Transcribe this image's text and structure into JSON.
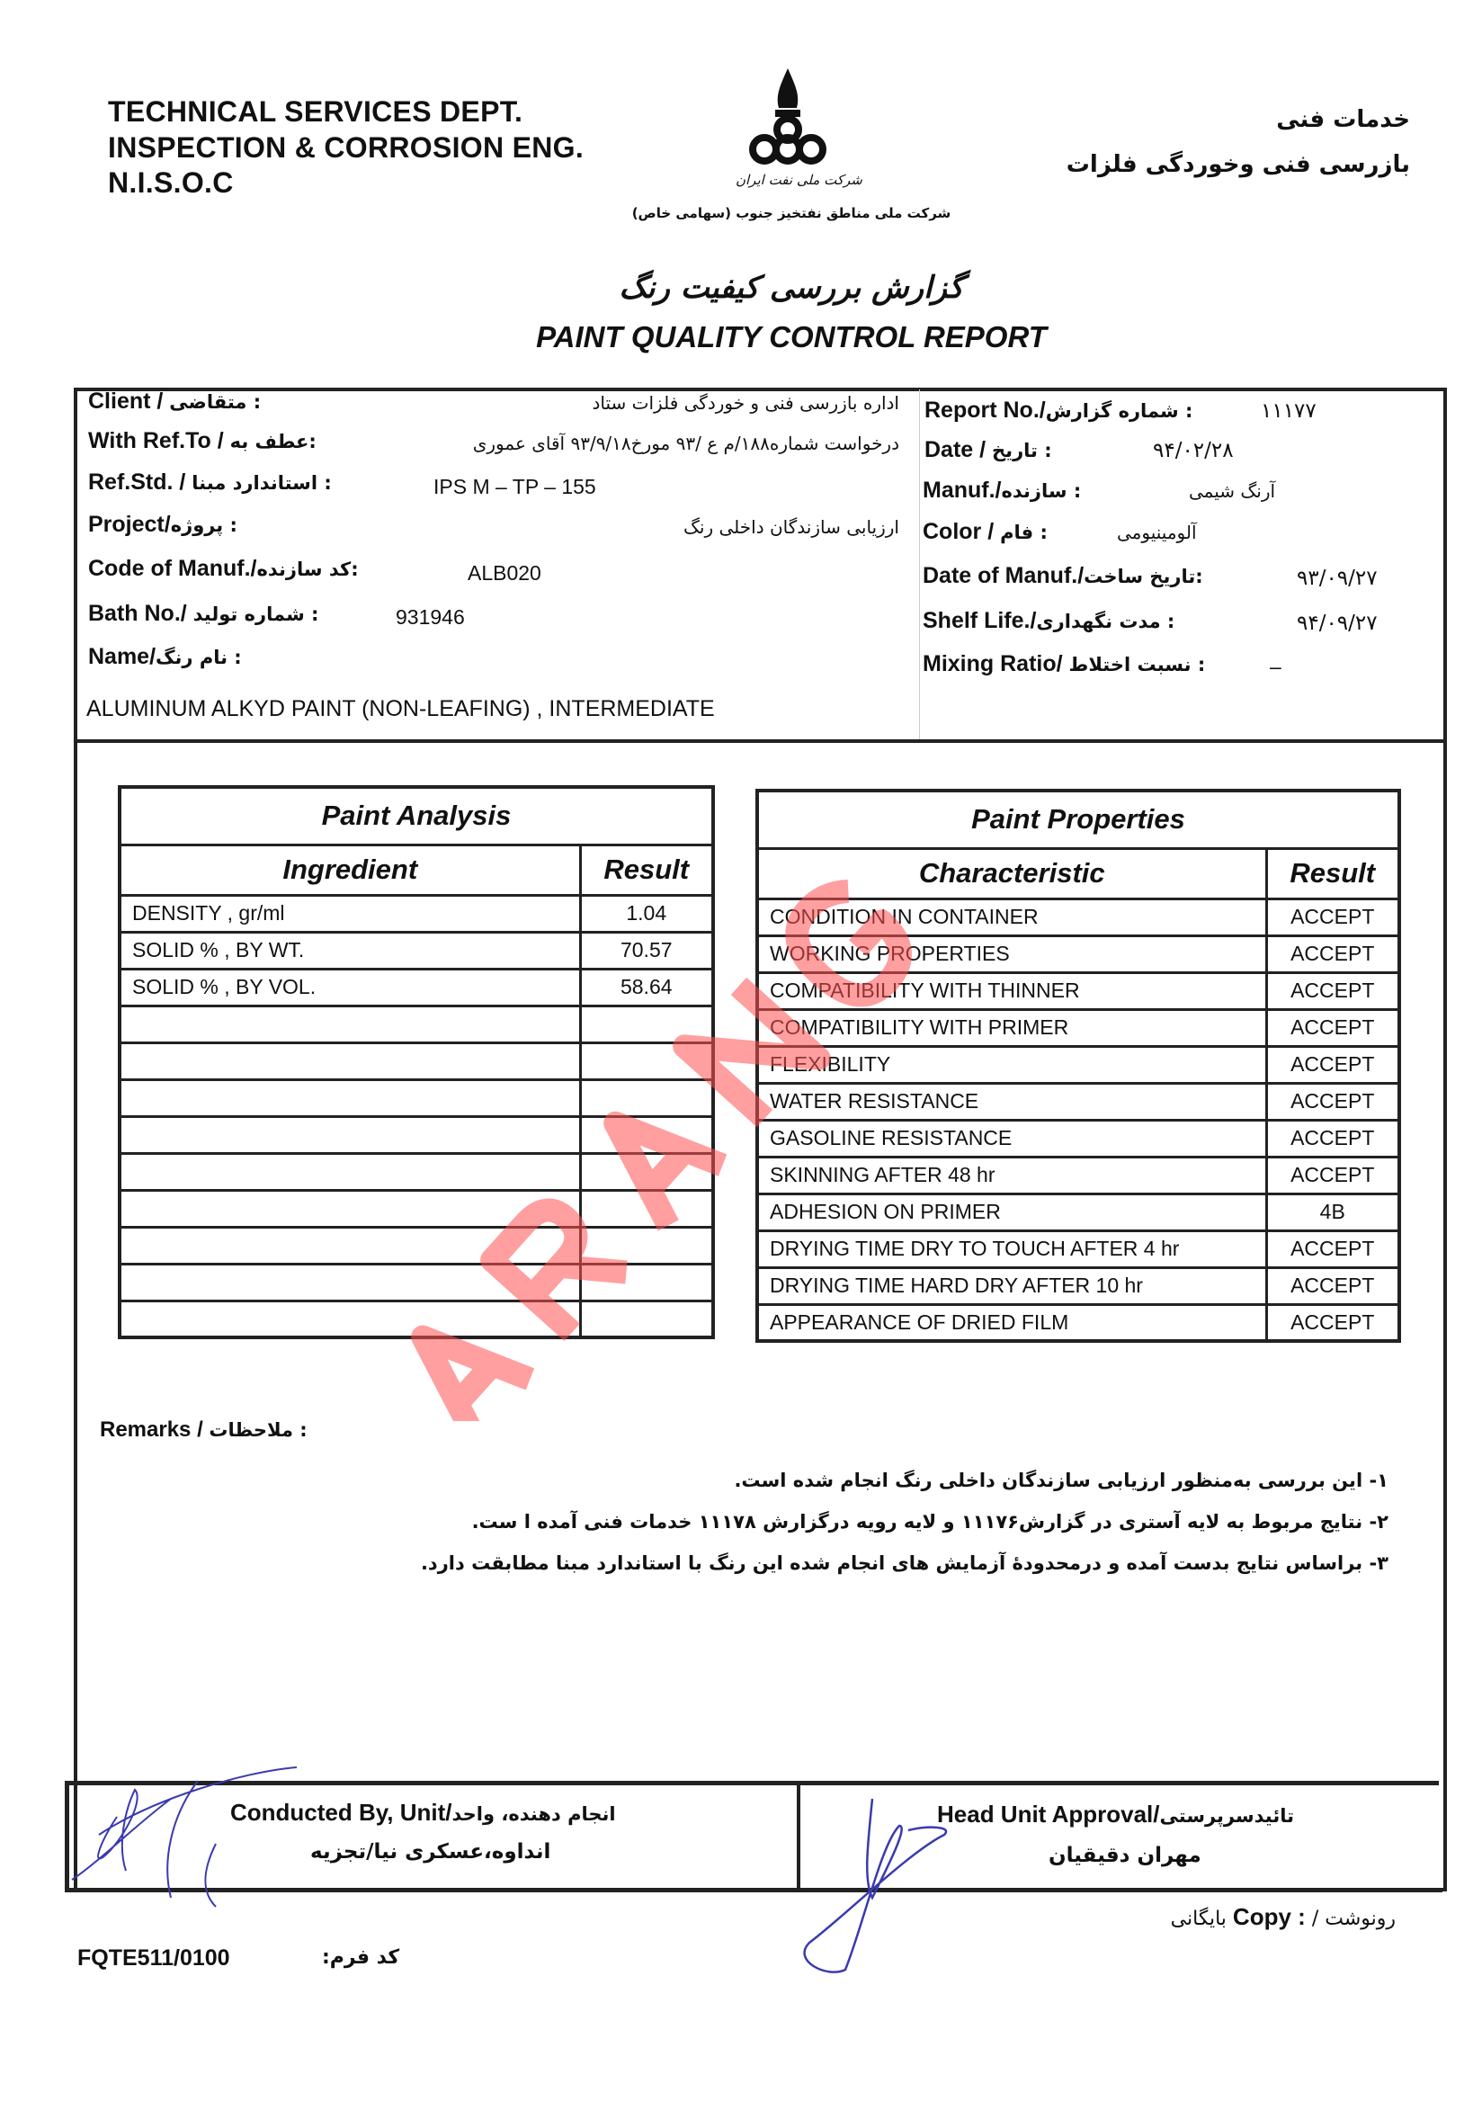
{
  "header": {
    "dept_en": [
      "TECHNICAL SERVICES DEPT.",
      "INSPECTION & CORROSION ENG.",
      "N.I.S.O.C"
    ],
    "dept_fa": [
      "خدمات فنی",
      "بازرسی فنی وخوردگی فلزات"
    ],
    "logo_caption": "شرکت ملی نفت ایران",
    "company_fa": "شرکت ملی مناطق نفتخیز جنوب (سهامی خاص)",
    "title_fa": "گزارش بررسی کیفیت رنگ",
    "title_en": "PAINT QUALITY CONTROL REPORT"
  },
  "info_left": [
    {
      "label": "Client /",
      "label_fa": "متقاضی :",
      "value": "اداره بازرسی فنی و خوردگی فلزات ستاد"
    },
    {
      "label": "With Ref.To /",
      "label_fa": "عطف به:",
      "value": "درخواست شماره۱۸۸/م ع /۹۳ مورخ۹۳/۹/۱۸ آقای عموری"
    },
    {
      "label": "Ref.Std. /",
      "label_fa": "استاندارد مبنا :",
      "value": "IPS M – TP – 155"
    },
    {
      "label": "Project/",
      "label_fa": "پروژه :",
      "value": "ارزیابی سازندگان داخلی رنگ"
    },
    {
      "label": "Code of Manuf./",
      "label_fa": "کد سازنده:",
      "value": "ALB020"
    },
    {
      "label": "Bath No./",
      "label_fa": "شماره تولید :",
      "value": "931946"
    },
    {
      "label": "Name/",
      "label_fa": "نام رنگ :",
      "value": ""
    }
  ],
  "paint_name": "ALUMINUM  ALKYD  PAINT (NON-LEAFING) , INTERMEDIATE",
  "info_right": [
    {
      "label": "Report No./",
      "label_fa": "شماره گزارش :",
      "value": "۱۱۱۷۷"
    },
    {
      "label": "Date /",
      "label_fa": "تاریخ :",
      "value": "۹۴/۰۲/۲۸"
    },
    {
      "label": "Manuf./",
      "label_fa": "سازنده :",
      "value": "آرنگ شیمی"
    },
    {
      "label": "Color /",
      "label_fa": "فام :",
      "value": "آلومینیومی"
    },
    {
      "label": "Date of Manuf./",
      "label_fa": "تاریخ ساخت:",
      "value": "۹۳/۰۹/۲۷"
    },
    {
      "label": "Shelf Life./",
      "label_fa": "مدت نگهداری :",
      "value": "۹۴/۰۹/۲۷"
    },
    {
      "label": "Mixing Ratio/",
      "label_fa": "نسبت اختلاط :",
      "value": "–"
    }
  ],
  "analysis": {
    "title": "Paint Analysis",
    "col_ingredient": "Ingredient",
    "col_result": "Result",
    "rows": [
      {
        "ingredient": "DENSITY  , gr/ml",
        "result": "1.04"
      },
      {
        "ingredient": "SOLID % , BY  WT.",
        "result": "70.57"
      },
      {
        "ingredient": "SOLID % , BY  VOL.",
        "result": "58.64"
      },
      {
        "ingredient": "",
        "result": ""
      },
      {
        "ingredient": "",
        "result": ""
      },
      {
        "ingredient": "",
        "result": ""
      },
      {
        "ingredient": "",
        "result": ""
      },
      {
        "ingredient": "",
        "result": ""
      },
      {
        "ingredient": "",
        "result": ""
      },
      {
        "ingredient": "",
        "result": ""
      },
      {
        "ingredient": "",
        "result": ""
      },
      {
        "ingredient": "",
        "result": ""
      }
    ]
  },
  "properties": {
    "title": "Paint Properties",
    "col_characteristic": "Characteristic",
    "col_result": "Result",
    "rows": [
      {
        "name": "CONDITION  IN  CONTAINER",
        "result": "ACCEPT"
      },
      {
        "name": "WORKING  PROPERTIES",
        "result": "ACCEPT"
      },
      {
        "name": "COMPATIBILITY   WITH  THINNER",
        "result": "ACCEPT"
      },
      {
        "name": "COMPATIBILITY   WITH   PRIMER",
        "result": "ACCEPT"
      },
      {
        "name": "FLEXIBILITY",
        "result": "ACCEPT"
      },
      {
        "name": "WATER  RESISTANCE",
        "result": "ACCEPT"
      },
      {
        "name": "GASOLINE  RESISTANCE",
        "result": "ACCEPT"
      },
      {
        "name": "SKINNING  AFTER  48 hr",
        "result": "ACCEPT"
      },
      {
        "name": "ADHESION ON  PRIMER",
        "result": "4B"
      },
      {
        "name": "DRYING TIME DRY TO TOUCH  AFTER  4 hr",
        "result": "ACCEPT"
      },
      {
        "name": "DRYING  TIME HARD  DRY AFTER 10 hr",
        "result": "ACCEPT"
      },
      {
        "name": "APPEARANCE OF DRIED  FILM",
        "result": "ACCEPT"
      }
    ]
  },
  "remarks": {
    "label": "Remarks /",
    "label_fa": "ملاحظات :",
    "lines": [
      "۱- این بررسی به‌منظور ارزیابی سازندگان داخلی رنگ انجام شده است.",
      "۲- نتایج  مربوط به لایه آستری در گزارش۱۱۱۷۶ و لایه رویه درگزارش ۱۱۱۷۸ خدمات فنی آمده ا ست.",
      "۳- براساس نتایج بدست آمده و درمحدودهٔ  آزمایش های انجام شده این رنگ با استاندارد مبنا مطابقت دارد."
    ]
  },
  "signatures": {
    "conducted_label": "Conducted By, Unit/",
    "conducted_label_fa": "انجام دهنده، واحد",
    "conducted_value": "انداوه،عسکری نیا/تجزیه",
    "approval_label": "Head Unit Approval/",
    "approval_label_fa": "تائیدسرپرستی",
    "approval_value": "مهران دقیقیان"
  },
  "footer": {
    "copy_fa": "رونوشت /",
    "copy_label": "Copy :",
    "copy_value": "بایگانی",
    "form_code": "FQTE511/0100",
    "form_code_label": "کد فرم:"
  },
  "watermark": "ARANG",
  "colors": {
    "ink": "#111111",
    "watermark": "#ff5050",
    "signature": "#3a3ab0"
  }
}
